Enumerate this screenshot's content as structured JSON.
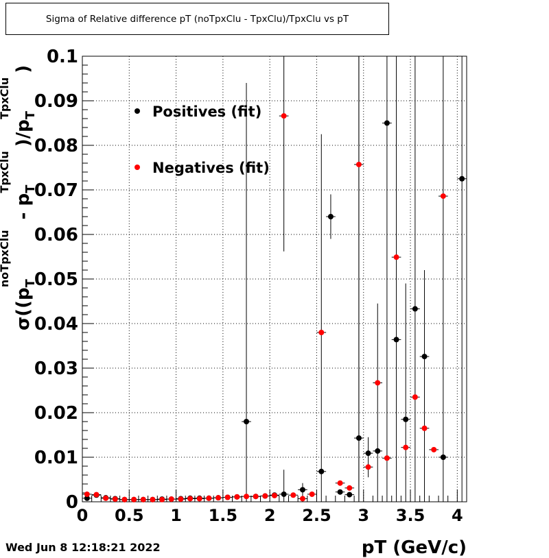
{
  "title": "Sigma of Relative difference pT (noTpxClu - TpxClu)/TpxClu vs pT",
  "timestamp": "Wed Jun  8 12:18:21 2022",
  "chart_data": {
    "type": "scatter",
    "title": "Sigma of Relative difference pT (noTpxClu - TpxClu)/TpxClu vs pT",
    "xlabel": "pT (GeV/c)",
    "ylabel": "σ((p_T^noTpxClu - p_T^TpxClu)/p_T^TpxClu)",
    "xlim": [
      0,
      4.1
    ],
    "ylim": [
      0,
      0.1
    ],
    "xticks": [
      "0",
      "0.5",
      "1",
      "1.5",
      "2",
      "2.5",
      "3",
      "3.5",
      "4"
    ],
    "yticks": [
      "0",
      "0.01",
      "0.02",
      "0.03",
      "0.04",
      "0.05",
      "0.06",
      "0.07",
      "0.08",
      "0.09",
      "0.1"
    ],
    "grid": true,
    "legend_position": "top-left",
    "series": [
      {
        "name": "Positives (fit)",
        "color": "#000000",
        "points": [
          {
            "x": 0.05,
            "y": 0.0008
          },
          {
            "x": 0.15,
            "y": 0.0015
          },
          {
            "x": 0.25,
            "y": 0.0009
          },
          {
            "x": 0.35,
            "y": 0.0007
          },
          {
            "x": 0.45,
            "y": 0.0005
          },
          {
            "x": 0.55,
            "y": 0.0005
          },
          {
            "x": 0.65,
            "y": 0.0005
          },
          {
            "x": 0.75,
            "y": 0.0005
          },
          {
            "x": 0.85,
            "y": 0.0006
          },
          {
            "x": 0.95,
            "y": 0.0006
          },
          {
            "x": 1.05,
            "y": 0.0007
          },
          {
            "x": 1.15,
            "y": 0.0008
          },
          {
            "x": 1.25,
            "y": 0.0008
          },
          {
            "x": 1.35,
            "y": 0.0008
          },
          {
            "x": 1.45,
            "y": 0.0009
          },
          {
            "x": 1.55,
            "y": 0.001
          },
          {
            "x": 1.65,
            "y": 0.0011
          },
          {
            "x": 1.75,
            "y": 0.018,
            "ylo": 0.0,
            "yhi": 0.094
          },
          {
            "x": 1.85,
            "y": 0.0012
          },
          {
            "x": 1.95,
            "y": 0.0013
          },
          {
            "x": 2.05,
            "y": 0.0015
          },
          {
            "x": 2.15,
            "y": 0.0017,
            "ylo": 0.0,
            "yhi": 0.0072
          },
          {
            "x": 2.35,
            "y": 0.0027,
            "ylo": 0.0,
            "yhi": 0.0042
          },
          {
            "x": 2.55,
            "y": 0.0068,
            "ylo": 0.0,
            "yhi": 0.0825
          },
          {
            "x": 2.65,
            "y": 0.064,
            "ylo": 0.059,
            "yhi": 0.069
          },
          {
            "x": 2.75,
            "y": 0.0022
          },
          {
            "x": 2.85,
            "y": 0.0016
          },
          {
            "x": 2.95,
            "y": 0.0143,
            "ylo": 0.0,
            "yhi": 0.1
          },
          {
            "x": 3.05,
            "y": 0.0109,
            "ylo": 0.0055,
            "yhi": 0.0145
          },
          {
            "x": 3.15,
            "y": 0.0114,
            "ylo": 0.0,
            "yhi": 0.0445
          },
          {
            "x": 3.25,
            "y": 0.085,
            "ylo": 0.0,
            "yhi": 0.1
          },
          {
            "x": 3.35,
            "y": 0.0364,
            "ylo": 0.0,
            "yhi": 0.1
          },
          {
            "x": 3.45,
            "y": 0.0185,
            "ylo": 0.0,
            "yhi": 0.049
          },
          {
            "x": 3.55,
            "y": 0.0433,
            "ylo": 0.0,
            "yhi": 0.1
          },
          {
            "x": 3.65,
            "y": 0.0326,
            "ylo": 0.0,
            "yhi": 0.052
          },
          {
            "x": 3.85,
            "y": 0.01,
            "ylo": 0.0,
            "yhi": 0.1
          },
          {
            "x": 4.05,
            "y": 0.0725,
            "ylo": 0.0,
            "yhi": 0.1
          }
        ]
      },
      {
        "name": "Negatives (fit)",
        "color": "#ff0000",
        "points": [
          {
            "x": 0.05,
            "y": 0.0017
          },
          {
            "x": 0.15,
            "y": 0.0016
          },
          {
            "x": 0.25,
            "y": 0.0008
          },
          {
            "x": 0.35,
            "y": 0.0006
          },
          {
            "x": 0.45,
            "y": 0.0005
          },
          {
            "x": 0.55,
            "y": 0.0005
          },
          {
            "x": 0.65,
            "y": 0.0005
          },
          {
            "x": 0.75,
            "y": 0.0005
          },
          {
            "x": 0.85,
            "y": 0.0005
          },
          {
            "x": 0.95,
            "y": 0.0006
          },
          {
            "x": 1.05,
            "y": 0.0006
          },
          {
            "x": 1.15,
            "y": 0.0007
          },
          {
            "x": 1.25,
            "y": 0.0007
          },
          {
            "x": 1.35,
            "y": 0.0008
          },
          {
            "x": 1.45,
            "y": 0.0009
          },
          {
            "x": 1.55,
            "y": 0.001
          },
          {
            "x": 1.65,
            "y": 0.0011
          },
          {
            "x": 1.75,
            "y": 0.0012
          },
          {
            "x": 1.85,
            "y": 0.0012
          },
          {
            "x": 1.95,
            "y": 0.0013
          },
          {
            "x": 2.05,
            "y": 0.0014
          },
          {
            "x": 2.15,
            "y": 0.0866,
            "ylo": 0.0562,
            "yhi": 0.1
          },
          {
            "x": 2.25,
            "y": 0.0015
          },
          {
            "x": 2.35,
            "y": 0.0007
          },
          {
            "x": 2.45,
            "y": 0.0017
          },
          {
            "x": 2.55,
            "y": 0.038
          },
          {
            "x": 2.75,
            "y": 0.0042
          },
          {
            "x": 2.85,
            "y": 0.0031
          },
          {
            "x": 2.95,
            "y": 0.0757,
            "ylo": 0.0,
            "yhi": 0.1
          },
          {
            "x": 3.05,
            "y": 0.0078
          },
          {
            "x": 3.15,
            "y": 0.0267
          },
          {
            "x": 3.25,
            "y": 0.0098
          },
          {
            "x": 3.35,
            "y": 0.0549
          },
          {
            "x": 3.45,
            "y": 0.0122
          },
          {
            "x": 3.55,
            "y": 0.0235
          },
          {
            "x": 3.65,
            "y": 0.0165
          },
          {
            "x": 3.75,
            "y": 0.0117
          },
          {
            "x": 3.85,
            "y": 0.0686
          }
        ]
      }
    ]
  }
}
